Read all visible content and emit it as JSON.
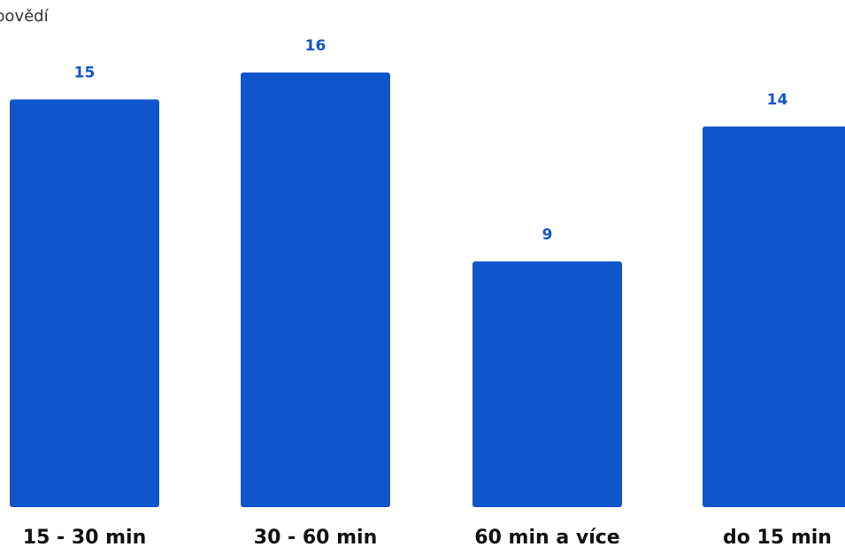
{
  "header": {
    "partial_title": "povědí"
  },
  "colors": {
    "bar": "#1155cc",
    "value_label": "#1155cc",
    "tick_label": "#111111"
  },
  "chart_data": {
    "type": "bar",
    "categories": [
      "15 - 30 min",
      "30 - 60 min",
      "60 min a více",
      "do 15 min"
    ],
    "values": [
      15,
      16,
      9,
      14
    ],
    "title": "",
    "xlabel": "",
    "ylabel": "",
    "ylim": [
      0,
      17.7
    ],
    "grid": false,
    "legend": "none"
  }
}
